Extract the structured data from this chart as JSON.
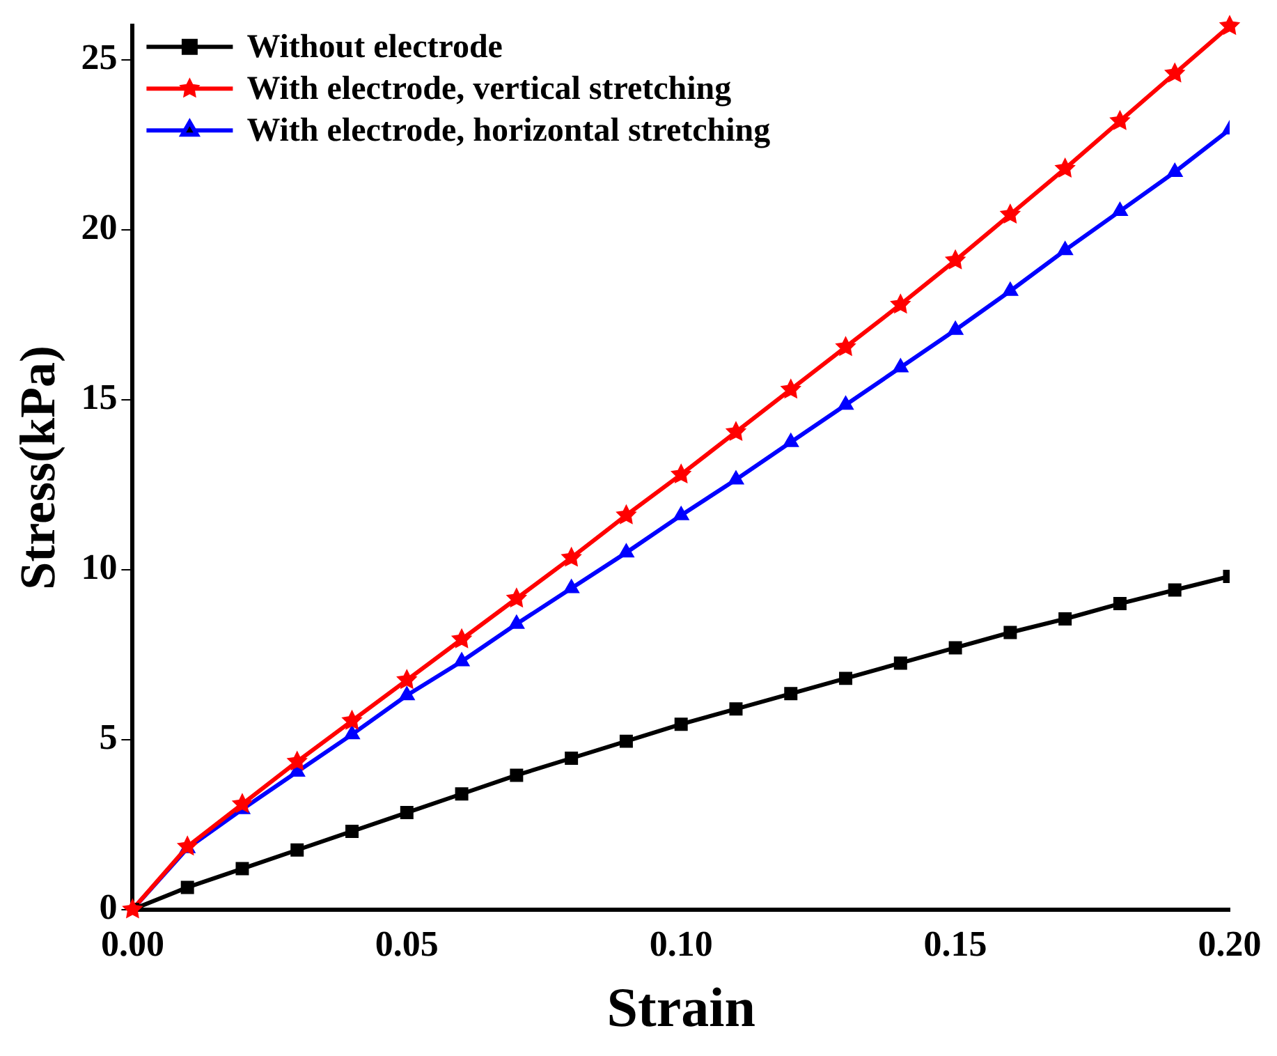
{
  "chart_data": {
    "type": "line",
    "xlabel": "Strain",
    "ylabel": "Stress(kPa)",
    "x": [
      0,
      0.01,
      0.02,
      0.03,
      0.04,
      0.05,
      0.06,
      0.07,
      0.08,
      0.09,
      0.1,
      0.11,
      0.12,
      0.13,
      0.14,
      0.15,
      0.16,
      0.17,
      0.18,
      0.19,
      0.2
    ],
    "series": [
      {
        "name": "Without electrode",
        "color": "#000000",
        "marker": "square",
        "values": [
          0,
          0.65,
          1.2,
          1.75,
          2.3,
          2.85,
          3.4,
          3.95,
          4.45,
          4.95,
          5.45,
          5.9,
          6.35,
          6.8,
          7.25,
          7.7,
          8.15,
          8.55,
          9.0,
          9.4,
          9.8
        ]
      },
      {
        "name": "With electrode, vertical stretching",
        "color": "#ff0000",
        "marker": "star",
        "values": [
          0,
          1.85,
          3.1,
          4.35,
          5.55,
          6.75,
          7.95,
          9.15,
          10.35,
          11.6,
          12.8,
          14.05,
          15.3,
          16.55,
          17.8,
          19.1,
          20.45,
          21.8,
          23.2,
          24.6,
          26.0
        ]
      },
      {
        "name": "With electrode, horizontal stretching",
        "color": "#0000ff",
        "marker": "triangle",
        "values": [
          0,
          1.8,
          2.95,
          4.05,
          5.15,
          6.3,
          7.3,
          8.4,
          9.45,
          10.5,
          11.6,
          12.65,
          13.75,
          14.85,
          15.95,
          17.05,
          18.2,
          19.4,
          20.55,
          21.7,
          22.95
        ]
      }
    ],
    "xlim": [
      0,
      0.2
    ],
    "xticks": [
      {
        "value": 0,
        "label": "0.00"
      },
      {
        "value": 0.05,
        "label": "0.05"
      },
      {
        "value": 0.1,
        "label": "0.10"
      },
      {
        "value": 0.15,
        "label": "0.15"
      },
      {
        "value": 0.2,
        "label": "0.20"
      }
    ],
    "ylim": [
      0,
      26
    ],
    "yticks": [
      0,
      5,
      10,
      15,
      20,
      25
    ],
    "grid": false,
    "legend": "top left",
    "line_style": "solid"
  }
}
